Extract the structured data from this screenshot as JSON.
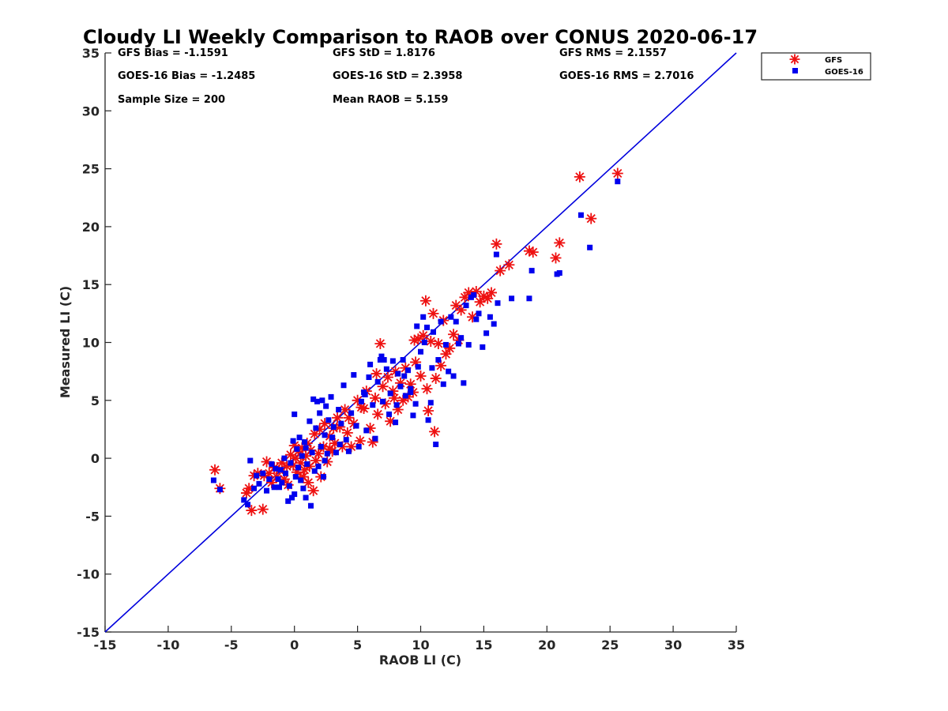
{
  "chart_data": {
    "type": "scatter",
    "title": "Cloudy LI Weekly Comparison to RAOB over CONUS 2020-06-17",
    "xlabel": "RAOB LI (C)",
    "ylabel": "Measured LI (C)",
    "xlim": [
      -15,
      35
    ],
    "ylim": [
      -15,
      35
    ],
    "xticks": [
      -15,
      -10,
      -5,
      0,
      5,
      10,
      15,
      20,
      25,
      30,
      35
    ],
    "yticks": [
      -15,
      -10,
      -5,
      0,
      5,
      10,
      15,
      20,
      25,
      30,
      35
    ],
    "grid": false,
    "legend_position": "top-right-outside",
    "reference_line": {
      "from": [
        -15,
        -15
      ],
      "to": [
        35,
        35
      ],
      "color": "#0000dd"
    },
    "stats": [
      "GFS Bias = -1.1591",
      "GFS StD = 1.8176",
      "GFS RMS = 2.1557",
      "GOES-16 Bias = -1.2485",
      "GOES-16 StD = 2.3958",
      "GOES-16 RMS = 2.7016",
      "Sample Size = 200",
      "Mean RAOB = 5.159"
    ],
    "series": [
      {
        "name": "GFS",
        "marker": "asterisk",
        "color": "#ee1111",
        "points": [
          [
            -6.3,
            -1.0
          ],
          [
            -5.9,
            -2.6
          ],
          [
            -3.8,
            -3.0
          ],
          [
            -3.6,
            -2.6
          ],
          [
            -3.4,
            -4.5
          ],
          [
            -3.2,
            -1.5
          ],
          [
            -2.9,
            -1.3
          ],
          [
            -2.5,
            -4.4
          ],
          [
            -2.4,
            -1.5
          ],
          [
            -2.2,
            -0.3
          ],
          [
            -2.0,
            -1.3
          ],
          [
            -1.8,
            -2.1
          ],
          [
            -1.6,
            -0.8
          ],
          [
            -1.4,
            -1.6
          ],
          [
            -1.2,
            -1.0
          ],
          [
            -1.0,
            -0.4
          ],
          [
            -0.8,
            -1.8
          ],
          [
            -0.6,
            -0.7
          ],
          [
            -0.5,
            -2.3
          ],
          [
            -0.3,
            0.3
          ],
          [
            -0.1,
            -0.6
          ],
          [
            0.0,
            1.1
          ],
          [
            0.1,
            0.0
          ],
          [
            0.2,
            -1.2
          ],
          [
            0.3,
            0.6
          ],
          [
            0.5,
            -0.4
          ],
          [
            0.6,
            0.9
          ],
          [
            0.7,
            -1.6
          ],
          [
            0.9,
            0.2
          ],
          [
            1.0,
            1.3
          ],
          [
            1.1,
            -2.1
          ],
          [
            1.2,
            -0.7
          ],
          [
            1.3,
            0.7
          ],
          [
            1.5,
            -2.8
          ],
          [
            1.6,
            2.1
          ],
          [
            1.7,
            -0.2
          ],
          [
            1.9,
            0.4
          ],
          [
            2.0,
            2.5
          ],
          [
            2.1,
            -1.6
          ],
          [
            2.3,
            1.0
          ],
          [
            2.4,
            3.0
          ],
          [
            2.6,
            -0.3
          ],
          [
            2.8,
            1.9
          ],
          [
            3.0,
            0.6
          ],
          [
            3.2,
            1.3
          ],
          [
            3.4,
            3.5
          ],
          [
            3.6,
            2.7
          ],
          [
            3.8,
            1.0
          ],
          [
            4.0,
            4.2
          ],
          [
            4.2,
            2.2
          ],
          [
            4.5,
            1.0
          ],
          [
            4.7,
            3.0
          ],
          [
            5.0,
            5.0
          ],
          [
            5.2,
            1.5
          ],
          [
            5.5,
            4.3
          ],
          [
            5.7,
            5.8
          ],
          [
            6.0,
            2.6
          ],
          [
            6.2,
            1.4
          ],
          [
            6.4,
            5.2
          ],
          [
            6.6,
            3.8
          ],
          [
            6.8,
            9.9
          ],
          [
            7.0,
            6.2
          ],
          [
            7.2,
            4.7
          ],
          [
            7.4,
            7.0
          ],
          [
            7.6,
            3.2
          ],
          [
            7.8,
            5.8
          ],
          [
            8.0,
            7.5
          ],
          [
            8.2,
            4.2
          ],
          [
            8.4,
            6.5
          ],
          [
            8.6,
            5.0
          ],
          [
            8.8,
            7.8
          ],
          [
            9.0,
            5.3
          ],
          [
            9.2,
            6.4
          ],
          [
            9.4,
            5.7
          ],
          [
            9.6,
            8.3
          ],
          [
            9.8,
            10.3
          ],
          [
            10.0,
            7.1
          ],
          [
            10.2,
            10.6
          ],
          [
            10.4,
            13.6
          ],
          [
            10.5,
            6.0
          ],
          [
            10.6,
            4.1
          ],
          [
            10.8,
            10.1
          ],
          [
            11.0,
            12.5
          ],
          [
            11.2,
            6.9
          ],
          [
            11.4,
            9.9
          ],
          [
            11.6,
            8.0
          ],
          [
            11.8,
            11.9
          ],
          [
            12.0,
            9.0
          ],
          [
            12.3,
            9.5
          ],
          [
            12.6,
            10.7
          ],
          [
            12.8,
            13.2
          ],
          [
            13.0,
            10.2
          ],
          [
            13.2,
            12.8
          ],
          [
            13.5,
            13.9
          ],
          [
            13.8,
            14.3
          ],
          [
            14.1,
            12.2
          ],
          [
            14.4,
            14.4
          ],
          [
            14.7,
            13.5
          ],
          [
            15.0,
            14.0
          ],
          [
            15.3,
            13.8
          ],
          [
            15.6,
            14.3
          ],
          [
            16.0,
            18.5
          ],
          [
            16.3,
            16.2
          ],
          [
            17.0,
            16.7
          ],
          [
            18.6,
            17.9
          ],
          [
            18.9,
            17.8
          ],
          [
            20.7,
            17.3
          ],
          [
            21.0,
            18.6
          ],
          [
            22.6,
            24.3
          ],
          [
            23.5,
            20.7
          ],
          [
            25.6,
            24.6
          ],
          [
            11.1,
            2.3
          ],
          [
            9.5,
            10.2
          ],
          [
            6.5,
            7.3
          ],
          [
            7.9,
            5.2
          ],
          [
            3.1,
            2.6
          ],
          [
            0.8,
            -1.0
          ],
          [
            2.8,
            0.8
          ],
          [
            4.3,
            3.5
          ],
          [
            5.3,
            4.4
          ]
        ]
      },
      {
        "name": "GOES-16",
        "marker": "square",
        "color": "#0000ee",
        "points": [
          [
            -6.4,
            -1.9
          ],
          [
            -5.9,
            -2.7
          ],
          [
            -4.0,
            -3.6
          ],
          [
            -3.7,
            -4.0
          ],
          [
            -3.5,
            -0.2
          ],
          [
            -3.2,
            -2.6
          ],
          [
            -3.0,
            -1.5
          ],
          [
            -2.8,
            -2.2
          ],
          [
            -2.5,
            -1.3
          ],
          [
            -2.2,
            -2.8
          ],
          [
            -2.0,
            -1.8
          ],
          [
            -1.8,
            -0.5
          ],
          [
            -1.6,
            -2.5
          ],
          [
            -1.5,
            -0.9
          ],
          [
            -1.3,
            -1.8
          ],
          [
            -1.1,
            -1.0
          ],
          [
            -1.0,
            -2.1
          ],
          [
            -0.8,
            0.0
          ],
          [
            -0.7,
            -1.3
          ],
          [
            -0.5,
            -3.7
          ],
          [
            -0.4,
            -2.4
          ],
          [
            -0.3,
            -0.4
          ],
          [
            -0.1,
            1.5
          ],
          [
            0.0,
            -3.1
          ],
          [
            0.0,
            3.8
          ],
          [
            0.1,
            -1.6
          ],
          [
            0.2,
            0.8
          ],
          [
            0.3,
            -0.8
          ],
          [
            0.4,
            1.8
          ],
          [
            0.5,
            -1.9
          ],
          [
            0.6,
            0.2
          ],
          [
            0.7,
            -2.6
          ],
          [
            0.8,
            1.4
          ],
          [
            0.9,
            -3.4
          ],
          [
            1.0,
            -0.5
          ],
          [
            1.2,
            3.2
          ],
          [
            1.3,
            -4.1
          ],
          [
            1.4,
            0.5
          ],
          [
            1.5,
            5.1
          ],
          [
            1.6,
            -1.1
          ],
          [
            1.7,
            2.6
          ],
          [
            1.8,
            4.9
          ],
          [
            1.9,
            -0.7
          ],
          [
            2.0,
            3.9
          ],
          [
            2.1,
            1.0
          ],
          [
            2.2,
            5.0
          ],
          [
            2.3,
            -1.6
          ],
          [
            2.4,
            2.0
          ],
          [
            2.5,
            4.5
          ],
          [
            2.6,
            0.4
          ],
          [
            2.7,
            3.3
          ],
          [
            2.9,
            5.3
          ],
          [
            3.0,
            1.8
          ],
          [
            3.1,
            2.7
          ],
          [
            3.3,
            0.5
          ],
          [
            3.5,
            4.2
          ],
          [
            3.7,
            3.0
          ],
          [
            3.9,
            6.3
          ],
          [
            4.1,
            1.6
          ],
          [
            4.3,
            0.6
          ],
          [
            4.5,
            3.9
          ],
          [
            4.7,
            7.2
          ],
          [
            4.9,
            2.8
          ],
          [
            5.1,
            1.0
          ],
          [
            5.3,
            4.9
          ],
          [
            5.5,
            5.7
          ],
          [
            5.7,
            2.4
          ],
          [
            5.9,
            7.0
          ],
          [
            6.0,
            8.1
          ],
          [
            6.2,
            4.6
          ],
          [
            6.4,
            1.7
          ],
          [
            6.6,
            6.6
          ],
          [
            6.8,
            8.5
          ],
          [
            7.0,
            4.9
          ],
          [
            7.1,
            8.5
          ],
          [
            7.3,
            7.7
          ],
          [
            7.5,
            3.8
          ],
          [
            7.6,
            5.6
          ],
          [
            7.8,
            8.4
          ],
          [
            8.0,
            3.1
          ],
          [
            8.1,
            4.6
          ],
          [
            8.2,
            7.3
          ],
          [
            8.4,
            6.2
          ],
          [
            8.6,
            8.5
          ],
          [
            8.8,
            5.4
          ],
          [
            9.0,
            7.6
          ],
          [
            9.2,
            6.0
          ],
          [
            9.4,
            3.7
          ],
          [
            9.6,
            4.7
          ],
          [
            9.8,
            7.9
          ],
          [
            10.0,
            9.2
          ],
          [
            10.2,
            12.2
          ],
          [
            10.3,
            10.0
          ],
          [
            10.5,
            11.3
          ],
          [
            10.6,
            3.3
          ],
          [
            10.8,
            4.8
          ],
          [
            11.0,
            10.9
          ],
          [
            11.2,
            1.2
          ],
          [
            11.4,
            8.5
          ],
          [
            11.6,
            11.8
          ],
          [
            11.8,
            6.4
          ],
          [
            12.0,
            9.8
          ],
          [
            12.2,
            7.5
          ],
          [
            12.4,
            12.2
          ],
          [
            12.6,
            7.1
          ],
          [
            12.8,
            11.8
          ],
          [
            13.0,
            9.9
          ],
          [
            13.2,
            10.4
          ],
          [
            13.4,
            6.5
          ],
          [
            13.6,
            13.2
          ],
          [
            13.8,
            9.8
          ],
          [
            14.0,
            13.9
          ],
          [
            14.2,
            14.1
          ],
          [
            14.4,
            12.0
          ],
          [
            14.6,
            12.5
          ],
          [
            14.9,
            9.6
          ],
          [
            15.2,
            10.8
          ],
          [
            15.5,
            12.2
          ],
          [
            15.8,
            11.6
          ],
          [
            16.0,
            17.6
          ],
          [
            16.1,
            13.4
          ],
          [
            17.2,
            13.8
          ],
          [
            18.6,
            13.8
          ],
          [
            18.8,
            16.2
          ],
          [
            20.8,
            15.9
          ],
          [
            21.0,
            16.0
          ],
          [
            22.7,
            21.0
          ],
          [
            23.4,
            18.2
          ],
          [
            25.6,
            23.9
          ],
          [
            -1.2,
            -2.5
          ],
          [
            -0.2,
            -3.4
          ],
          [
            0.9,
            0.9
          ],
          [
            2.4,
            -0.2
          ],
          [
            3.6,
            1.2
          ],
          [
            5.6,
            5.5
          ],
          [
            6.9,
            8.8
          ],
          [
            8.7,
            7.1
          ],
          [
            9.2,
            5.7
          ],
          [
            9.7,
            11.4
          ],
          [
            10.9,
            7.8
          ]
        ]
      }
    ]
  }
}
